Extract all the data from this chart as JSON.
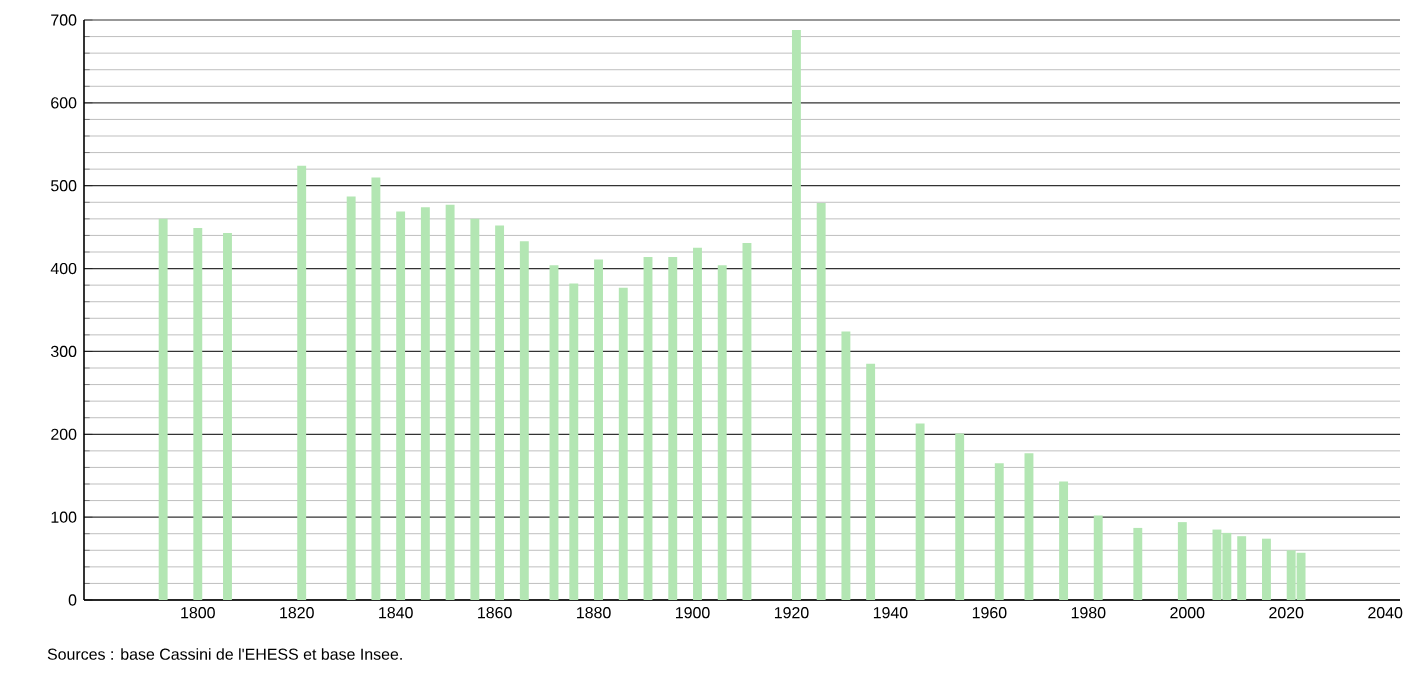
{
  "chart_data": {
    "type": "bar",
    "color": "#b3e6b3",
    "x": [
      1793,
      1800,
      1806,
      1821,
      1831,
      1836,
      1841,
      1846,
      1851,
      1856,
      1861,
      1866,
      1872,
      1876,
      1881,
      1886,
      1891,
      1896,
      1901,
      1906,
      1911,
      1921,
      1926,
      1931,
      1936,
      1946,
      1954,
      1962,
      1968,
      1975,
      1982,
      1990,
      1999,
      2006,
      2008,
      2011,
      2016,
      2021,
      2023
    ],
    "values": [
      460,
      449,
      443,
      524,
      487,
      510,
      469,
      474,
      477,
      460,
      452,
      433,
      404,
      382,
      411,
      377,
      414,
      414,
      425,
      404,
      431,
      688,
      479,
      324,
      285,
      213,
      201,
      165,
      177,
      143,
      102,
      87,
      94,
      85,
      81,
      77,
      74,
      60,
      57
    ],
    "xlim": [
      1777,
      2043
    ],
    "ylim": [
      0,
      700
    ],
    "xticks": [
      1800,
      1820,
      1840,
      1860,
      1880,
      1900,
      1920,
      1940,
      1960,
      1980,
      2000,
      2020,
      2040
    ],
    "yticks": [
      0,
      100,
      200,
      300,
      400,
      500,
      600,
      700
    ],
    "grid": "y",
    "annotations": [
      "Sources : base Cassini de l'EHESS et base Insee."
    ]
  }
}
